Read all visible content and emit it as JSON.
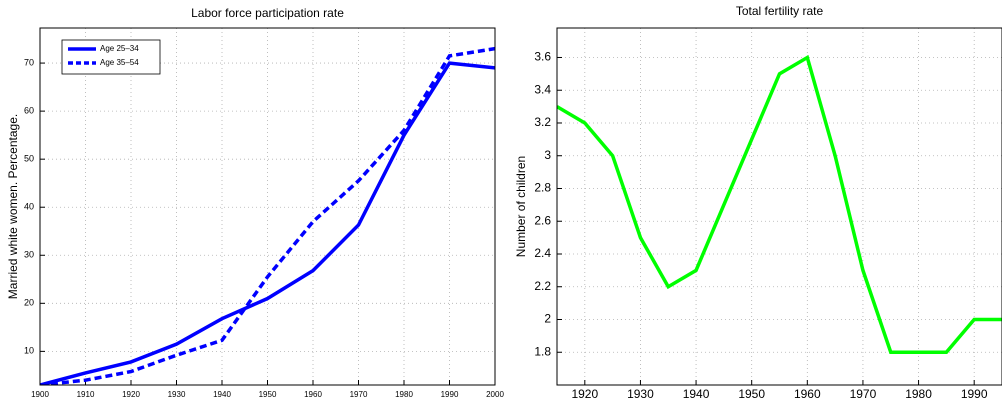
{
  "chart_data": [
    {
      "type": "line",
      "title": "Labor force participation rate",
      "ylabel": "Married white women. Percentage.",
      "x": [
        1900,
        1910,
        1920,
        1930,
        1940,
        1950,
        1960,
        1970,
        1980,
        1990,
        2000
      ],
      "series": [
        {
          "name": "Age 25–34",
          "color": "#0000ff",
          "linestyle": "solid",
          "values": [
            3,
            5.5,
            7.8,
            11.5,
            16.8,
            21,
            26.8,
            36.3,
            55,
            70,
            69
          ]
        },
        {
          "name": "Age 35–54",
          "color": "#0000ff",
          "linestyle": "dashed",
          "values": [
            3,
            4,
            5.8,
            9.2,
            12.3,
            25.5,
            37,
            45.5,
            56,
            71.5,
            73
          ]
        }
      ],
      "xlim": [
        1900,
        2000
      ],
      "xticks": [
        1900,
        1910,
        1920,
        1930,
        1940,
        1950,
        1960,
        1970,
        1980,
        1990,
        2000
      ],
      "ylim": [
        3,
        77.3
      ],
      "yticks": [
        10,
        20,
        30,
        40,
        50,
        60,
        70
      ],
      "grid": true,
      "legend": "upper left"
    },
    {
      "type": "line",
      "title": "Total fertility rate",
      "ylabel": "Number of children",
      "x": [
        1915,
        1920,
        1925,
        1930,
        1935,
        1940,
        1945,
        1950,
        1955,
        1960,
        1965,
        1970,
        1975,
        1980,
        1985,
        1990,
        1995
      ],
      "series": [
        {
          "color": "#00ff00",
          "linestyle": "solid",
          "values": [
            3.3,
            3.2,
            3.0,
            2.5,
            2.2,
            2.3,
            2.7,
            3.1,
            3.5,
            3.6,
            3.0,
            2.3,
            1.8,
            1.8,
            1.8,
            2.0,
            2.0
          ]
        }
      ],
      "xlim": [
        1915,
        1995
      ],
      "xticks": [
        1920,
        1930,
        1940,
        1950,
        1960,
        1970,
        1980,
        1990
      ],
      "ylim": [
        1.6,
        3.78
      ],
      "yticks": [
        1.8,
        2,
        2.2,
        2.4,
        2.6,
        2.8,
        3,
        3.2,
        3.4,
        3.6
      ],
      "grid": true
    }
  ]
}
